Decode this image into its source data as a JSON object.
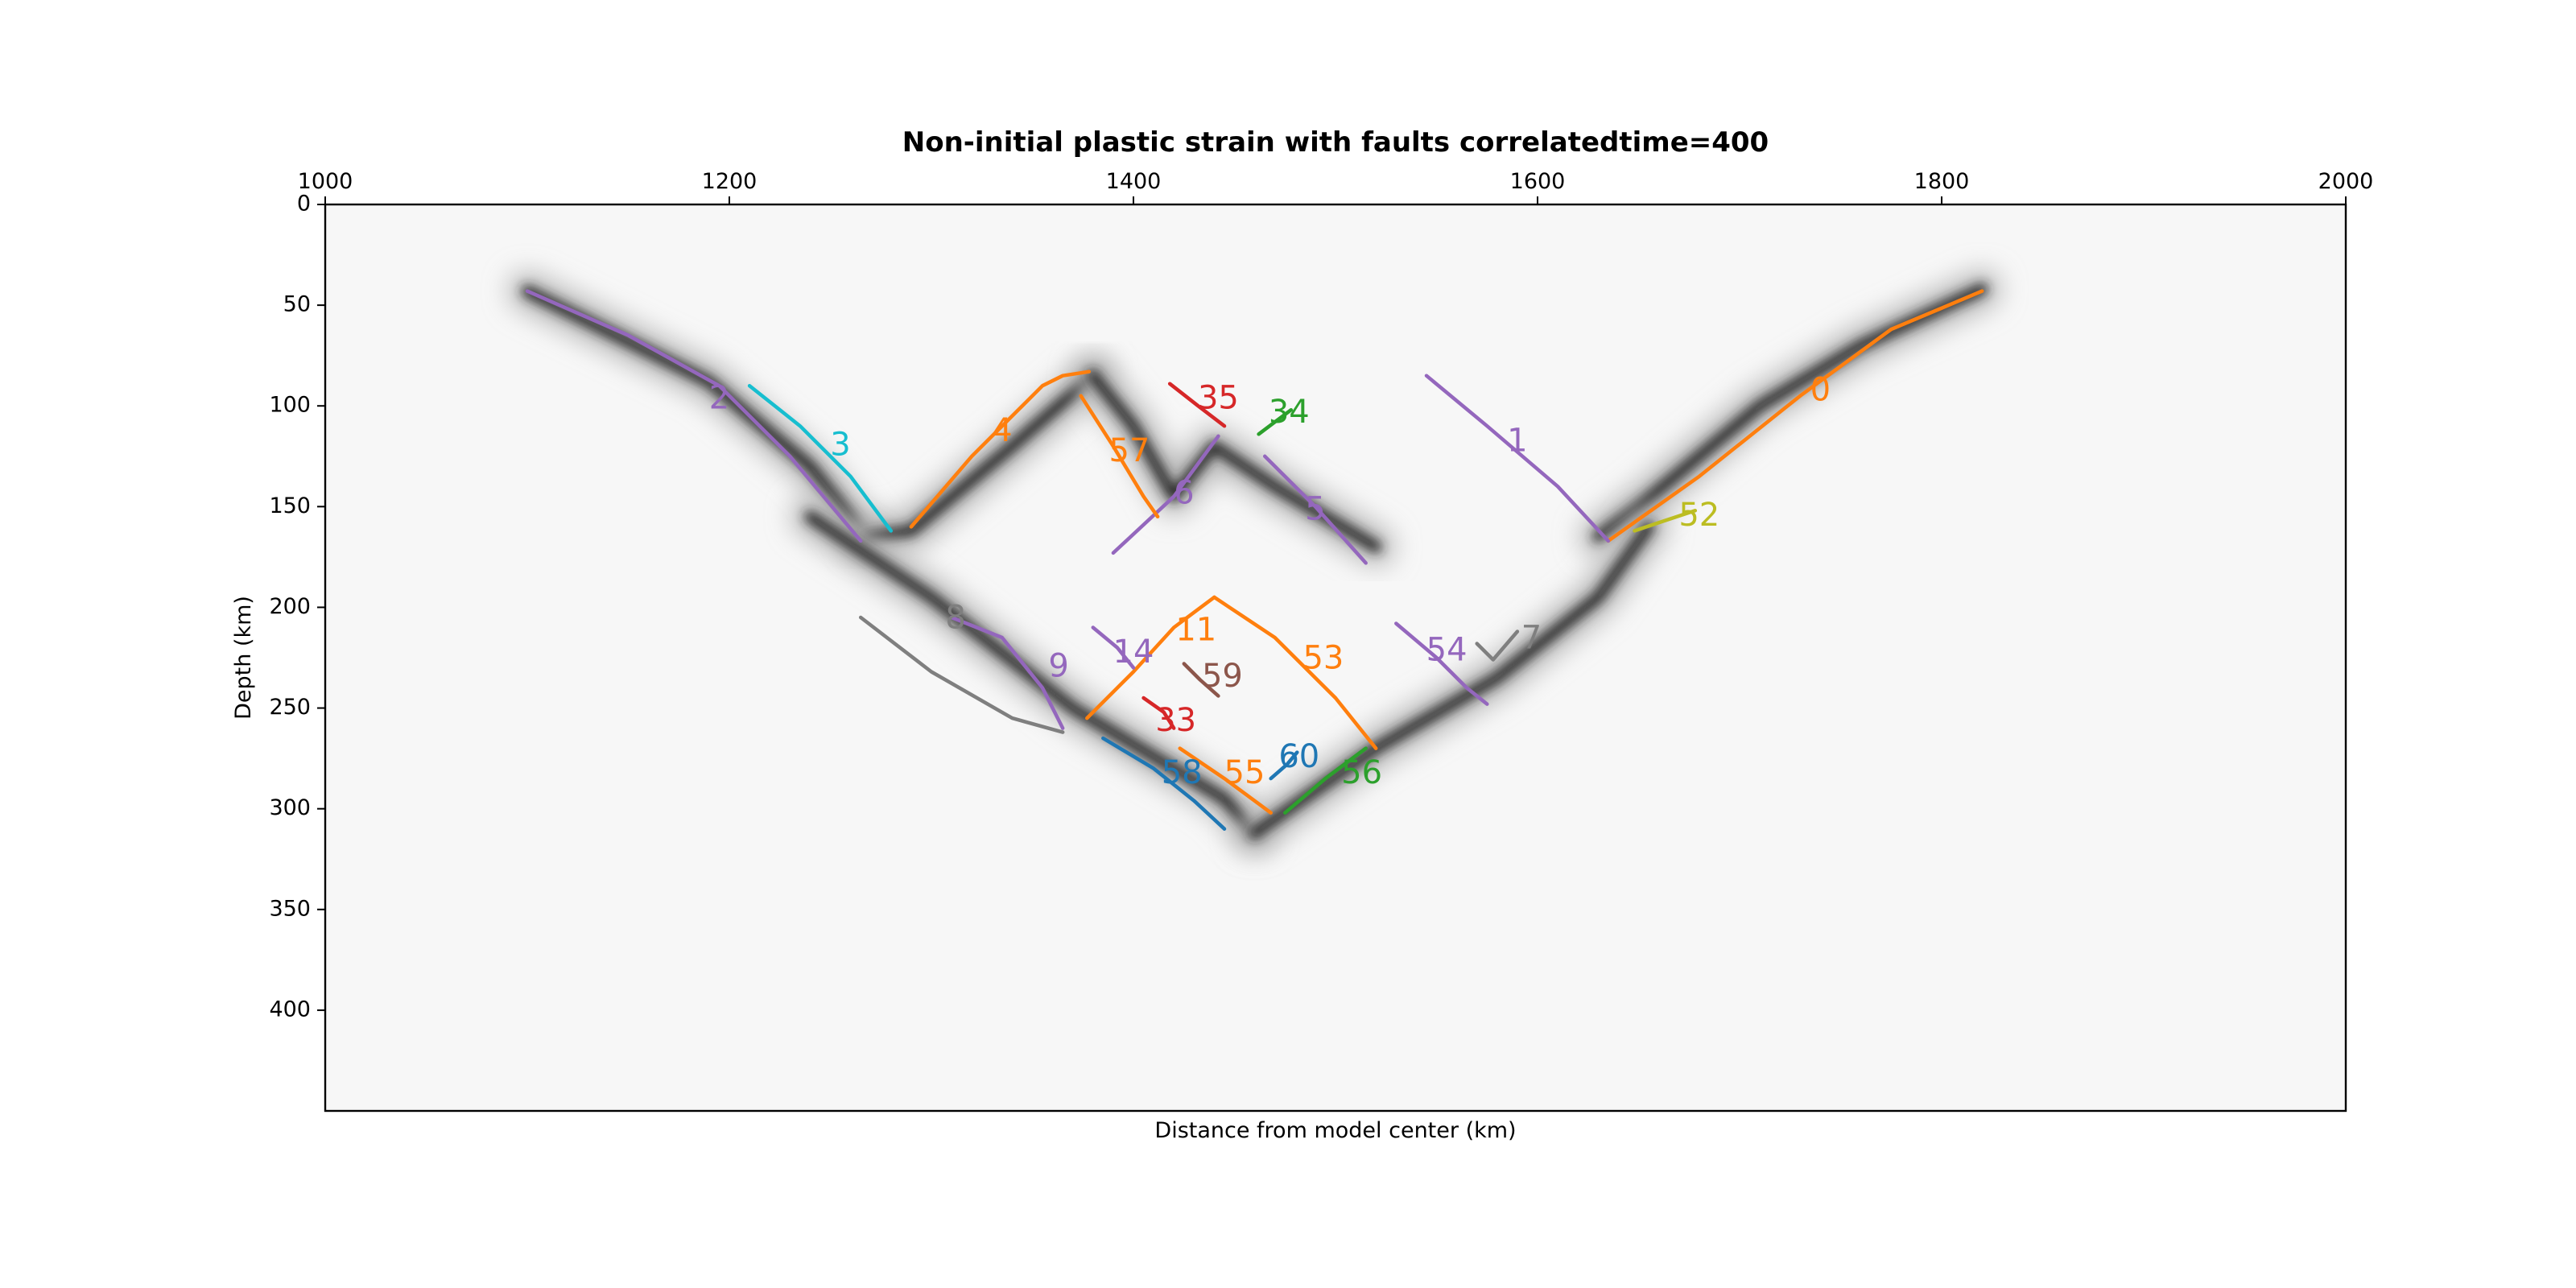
{
  "chart_data": {
    "type": "line",
    "title": "Non-initial plastic strain with faults correlatedtime=400",
    "xlabel": "Distance from model center (km)",
    "ylabel": "Depth (km)",
    "xlim": [
      1000,
      2000
    ],
    "ylim": [
      450,
      0
    ],
    "x_axis_position": "top",
    "y_inverted": true,
    "grid": false,
    "legend": "none",
    "x_ticks": [
      1000,
      1200,
      1400,
      1600,
      1800,
      2000
    ],
    "y_ticks": [
      0,
      50,
      100,
      150,
      200,
      250,
      300,
      350,
      400
    ],
    "background": "plastic strain field (greyscale)",
    "strain_bands": [
      {
        "x": [
          1100,
          1190,
          1240,
          1268
        ],
        "y": [
          43,
          88,
          130,
          165
        ]
      },
      {
        "x": [
          1268,
          1290,
          1340,
          1380
        ],
        "y": [
          165,
          162,
          120,
          85
        ]
      },
      {
        "x": [
          1630,
          1650,
          1710,
          1760,
          1820
        ],
        "y": [
          165,
          150,
          100,
          70,
          42
        ]
      },
      {
        "x": [
          1240,
          1300,
          1370,
          1445,
          1460
        ],
        "y": [
          155,
          195,
          250,
          295,
          312
        ]
      },
      {
        "x": [
          1460,
          1520,
          1580,
          1630,
          1655
        ],
        "y": [
          312,
          270,
          235,
          195,
          160
        ]
      },
      {
        "x": [
          1380,
          1400,
          1420,
          1440,
          1470,
          1520
        ],
        "y": [
          85,
          110,
          145,
          120,
          140,
          170
        ]
      }
    ],
    "series": [
      {
        "name": "0",
        "color": "#ff7f0e",
        "x": [
          1635,
          1680,
          1730,
          1775,
          1820
        ],
        "y": [
          167,
          135,
          95,
          62,
          43
        ]
      },
      {
        "name": "1",
        "color": "#9467bd",
        "x": [
          1545,
          1575,
          1610,
          1635
        ],
        "y": [
          85,
          110,
          140,
          167
        ]
      },
      {
        "name": "2",
        "color": "#9467bd",
        "x": [
          1100,
          1150,
          1195,
          1230,
          1265
        ],
        "y": [
          43,
          65,
          90,
          125,
          167
        ]
      },
      {
        "name": "3",
        "color": "#17becf",
        "x": [
          1210,
          1235,
          1260,
          1280
        ],
        "y": [
          90,
          110,
          135,
          162
        ]
      },
      {
        "name": "4",
        "color": "#ff7f0e",
        "x": [
          1290,
          1320,
          1355,
          1365,
          1378
        ],
        "y": [
          160,
          125,
          90,
          85,
          83
        ]
      },
      {
        "name": "5",
        "color": "#9467bd",
        "x": [
          1465,
          1490,
          1515
        ],
        "y": [
          125,
          150,
          178
        ]
      },
      {
        "name": "6",
        "color": "#9467bd",
        "x": [
          1390,
          1420,
          1442
        ],
        "y": [
          173,
          145,
          115
        ]
      },
      {
        "name": "7",
        "color": "#7f7f7f",
        "x": [
          1570,
          1578,
          1590
        ],
        "y": [
          218,
          226,
          212
        ]
      },
      {
        "name": "8",
        "color": "#7f7f7f",
        "x": [
          1265,
          1300,
          1340,
          1365
        ],
        "y": [
          205,
          232,
          255,
          262
        ]
      },
      {
        "name": "9",
        "color": "#9467bd",
        "x": [
          1310,
          1335,
          1355,
          1365
        ],
        "y": [
          205,
          215,
          240,
          260
        ]
      },
      {
        "name": "11",
        "color": "#ff7f0e",
        "x": [
          1377,
          1400,
          1420,
          1440
        ],
        "y": [
          255,
          232,
          210,
          195
        ]
      },
      {
        "name": "14",
        "color": "#9467bd",
        "x": [
          1380,
          1392,
          1400
        ],
        "y": [
          210,
          220,
          230
        ]
      },
      {
        "name": "33",
        "color": "#d62728",
        "x": [
          1405,
          1415,
          1420
        ],
        "y": [
          245,
          252,
          260
        ]
      },
      {
        "name": "34",
        "color": "#2ca02c",
        "x": [
          1462,
          1470,
          1478
        ],
        "y": [
          114,
          108,
          102
        ]
      },
      {
        "name": "35",
        "color": "#d62728",
        "x": [
          1418,
          1432,
          1445
        ],
        "y": [
          89,
          100,
          110
        ]
      },
      {
        "name": "52",
        "color": "#bcbd22",
        "x": [
          1648,
          1663,
          1678
        ],
        "y": [
          162,
          157,
          152
        ]
      },
      {
        "name": "53",
        "color": "#ff7f0e",
        "x": [
          1440,
          1470,
          1500,
          1520
        ],
        "y": [
          195,
          215,
          245,
          270
        ]
      },
      {
        "name": "54",
        "color": "#9467bd",
        "x": [
          1530,
          1550,
          1565,
          1575
        ],
        "y": [
          208,
          225,
          240,
          248
        ]
      },
      {
        "name": "55",
        "color": "#ff7f0e",
        "x": [
          1423,
          1445,
          1468
        ],
        "y": [
          270,
          285,
          302
        ]
      },
      {
        "name": "56",
        "color": "#2ca02c",
        "x": [
          1475,
          1495,
          1515
        ],
        "y": [
          302,
          285,
          270
        ]
      },
      {
        "name": "57",
        "color": "#ff7f0e",
        "x": [
          1374,
          1390,
          1405,
          1412
        ],
        "y": [
          95,
          120,
          145,
          155
        ]
      },
      {
        "name": "58",
        "color": "#1f77b4",
        "x": [
          1385,
          1410,
          1430,
          1445
        ],
        "y": [
          265,
          280,
          296,
          310
        ]
      },
      {
        "name": "59",
        "color": "#8c564b",
        "x": [
          1425,
          1433,
          1442
        ],
        "y": [
          228,
          236,
          244
        ]
      },
      {
        "name": "60",
        "color": "#1f77b4",
        "x": [
          1468,
          1476,
          1481
        ],
        "y": [
          285,
          278,
          272
        ]
      }
    ],
    "annotations": [
      {
        "text": "0",
        "x": 1740,
        "y": 93,
        "color": "#ff7f0e"
      },
      {
        "text": "1",
        "x": 1590,
        "y": 118,
        "color": "#9467bd"
      },
      {
        "text": "2",
        "x": 1195,
        "y": 97,
        "color": "#9467bd"
      },
      {
        "text": "3",
        "x": 1255,
        "y": 120,
        "color": "#17becf"
      },
      {
        "text": "4",
        "x": 1335,
        "y": 113,
        "color": "#ff7f0e"
      },
      {
        "text": "5",
        "x": 1490,
        "y": 152,
        "color": "#9467bd"
      },
      {
        "text": "6",
        "x": 1425,
        "y": 144,
        "color": "#9467bd"
      },
      {
        "text": "7",
        "x": 1597,
        "y": 216,
        "color": "#7f7f7f"
      },
      {
        "text": "8",
        "x": 1312,
        "y": 206,
        "color": "#7f7f7f"
      },
      {
        "text": "9",
        "x": 1363,
        "y": 230,
        "color": "#9467bd"
      },
      {
        "text": "11",
        "x": 1431,
        "y": 212,
        "color": "#ff7f0e"
      },
      {
        "text": "14",
        "x": 1400,
        "y": 223,
        "color": "#9467bd"
      },
      {
        "text": "33",
        "x": 1421,
        "y": 257,
        "color": "#d62728"
      },
      {
        "text": "34",
        "x": 1477,
        "y": 104,
        "color": "#2ca02c"
      },
      {
        "text": "35",
        "x": 1442,
        "y": 97,
        "color": "#d62728"
      },
      {
        "text": "52",
        "x": 1680,
        "y": 155,
        "color": "#bcbd22"
      },
      {
        "text": "53",
        "x": 1494,
        "y": 226,
        "color": "#ff7f0e"
      },
      {
        "text": "54",
        "x": 1555,
        "y": 222,
        "color": "#9467bd"
      },
      {
        "text": "55",
        "x": 1455,
        "y": 283,
        "color": "#ff7f0e"
      },
      {
        "text": "56",
        "x": 1513,
        "y": 283,
        "color": "#2ca02c"
      },
      {
        "text": "57",
        "x": 1398,
        "y": 123,
        "color": "#ff7f0e"
      },
      {
        "text": "58",
        "x": 1424,
        "y": 283,
        "color": "#1f77b4"
      },
      {
        "text": "59",
        "x": 1444,
        "y": 235,
        "color": "#8c564b"
      },
      {
        "text": "60",
        "x": 1482,
        "y": 275,
        "color": "#1f77b4"
      }
    ]
  }
}
